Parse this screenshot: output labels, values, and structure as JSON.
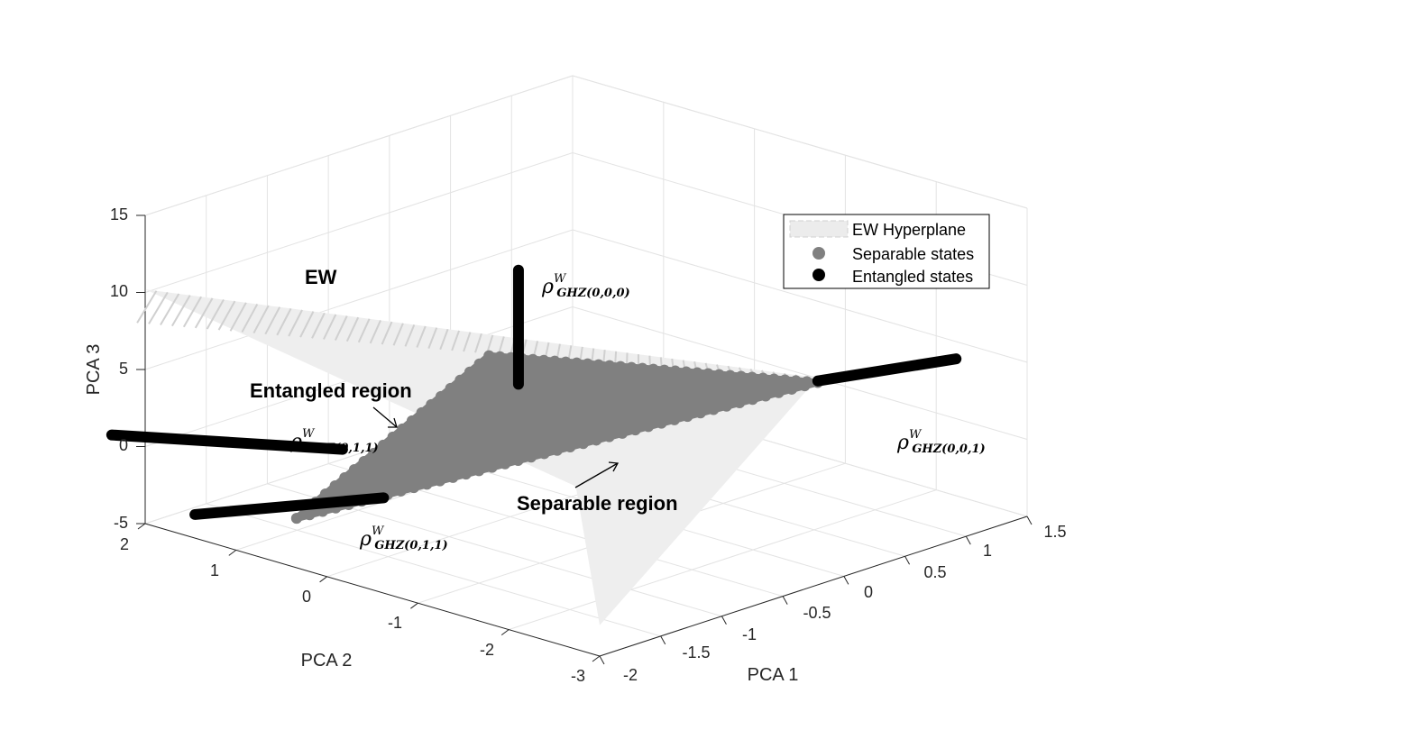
{
  "chart_data": {
    "type": "scatter",
    "title": "",
    "xlabel": "PCA 1",
    "ylabel": "PCA 2",
    "zlabel": "PCA 3",
    "xlim": [
      -2,
      1.5
    ],
    "ylim": [
      -3,
      2
    ],
    "zlim": [
      -5,
      15
    ],
    "x_ticks": [
      "-2",
      "-1.5",
      "-1",
      "-0.5",
      "0",
      "0.5",
      "1",
      "1.5"
    ],
    "y_ticks": [
      "-3",
      "-2",
      "-1",
      "0",
      "1",
      "2"
    ],
    "z_ticks": [
      "-5",
      "0",
      "5",
      "10",
      "15"
    ],
    "grid": true,
    "legend": {
      "position": "top-right",
      "entries": [
        "EW Hyperplane",
        "Separable states",
        "Entangled states"
      ]
    },
    "colors": {
      "hyperplane": "#d9d9d9",
      "separable": "#808080",
      "entangled": "#000000"
    },
    "series": [
      {
        "name": "EW Hyperplane",
        "kind": "surface",
        "corners": [
          [
            -2,
            2,
            10.2
          ],
          [
            1.2,
            -1.1,
            1.5
          ],
          [
            -2,
            -3,
            -3
          ],
          [
            -1.6,
            -2.2,
            3.6
          ]
        ]
      },
      {
        "name": "Separable states",
        "kind": "region",
        "vertices": [
          [
            -0.45,
            0.3,
            4.8
          ],
          [
            -2.1,
            0.2,
            -1.3
          ],
          [
            1.2,
            -1.1,
            1.2
          ]
        ]
      },
      {
        "name": "Entangled states",
        "kind": "segments",
        "segments": [
          {
            "label": "ρ_GHZ(0,0,0)",
            "from": [
              -0.06,
              0.5,
              1.6
            ],
            "to": [
              -0.06,
              0.5,
              9.0
            ]
          },
          {
            "label": "ρ_GHZ(0,0,1)",
            "from": [
              1.2,
              -1.1,
              1.3
            ],
            "to": [
              1.7,
              -1.95,
              2.9
            ]
          },
          {
            "label": "ρ_GHZ(0,1,1)",
            "from": [
              -1.5,
              0.5,
              1.1
            ],
            "to": [
              -2.2,
              2.1,
              1.1
            ]
          },
          {
            "label": "ρ_GHZ(0,1,1)",
            "from": [
              -1.35,
              0.25,
              -2.0
            ],
            "to": [
              -2.3,
              1.05,
              -2.0
            ]
          }
        ]
      }
    ],
    "annotations": {
      "ew": "EW",
      "entangled_region": "Entangled region",
      "separable_region": "Separable region",
      "rho": "ρ",
      "rho_sup": "W",
      "rho_sub_000": "GHZ(0,0,0)",
      "rho_sub_001": "GHZ(0,0,1)",
      "rho_sub_011a": "GHZ(0,1,1)",
      "rho_sub_011b": "GHZ(0,1,1)"
    }
  }
}
